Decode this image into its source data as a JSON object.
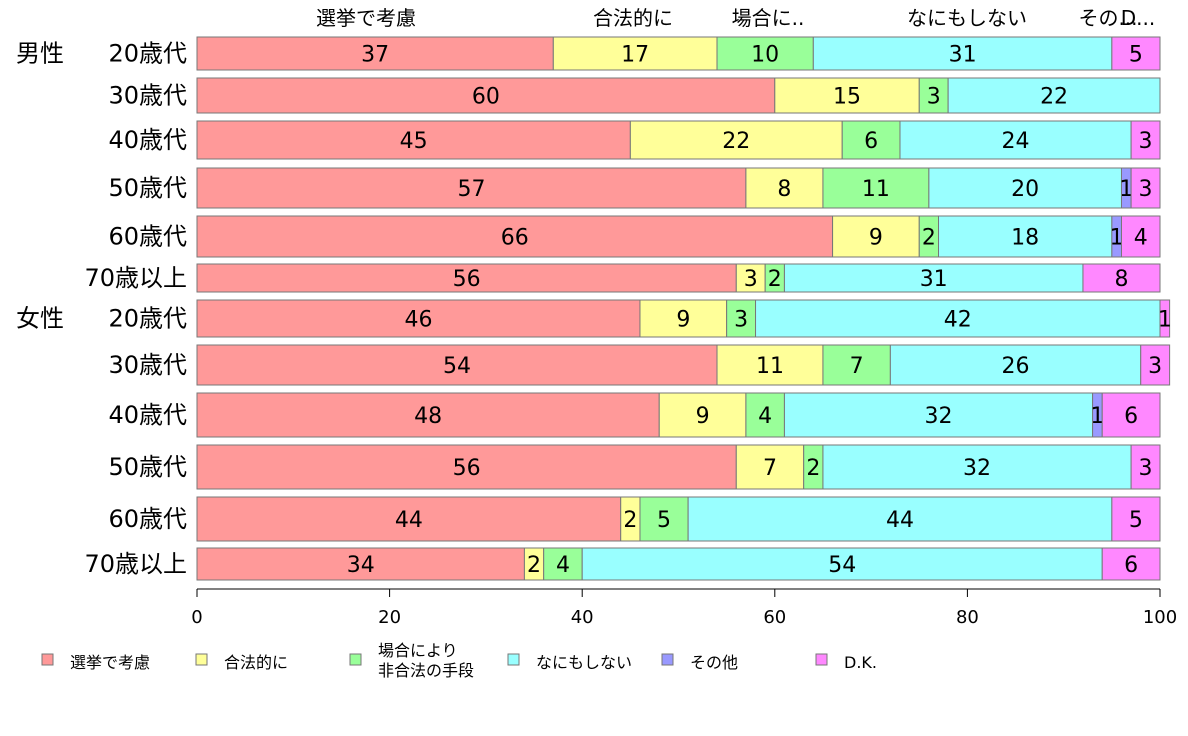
{
  "chart_data": {
    "type": "bar",
    "orientation": "horizontal",
    "stacked": true,
    "column_headers": [
      "選挙で考慮",
      "合法的に",
      "場合に..",
      "なにもしない",
      "その...",
      "D..."
    ],
    "group_labels": [
      "男性",
      "女性"
    ],
    "categories": [
      "20歳代",
      "30歳代",
      "40歳代",
      "50歳代",
      "60歳代",
      "70歳以上",
      "20歳代",
      "30歳代",
      "40歳代",
      "50歳代",
      "60歳代",
      "70歳以上"
    ],
    "series": [
      {
        "name": "選挙で考慮",
        "color": "#FF9999",
        "values": [
          37,
          60,
          45,
          57,
          66,
          56,
          46,
          54,
          48,
          56,
          44,
          34
        ]
      },
      {
        "name": "合法的に",
        "color": "#FFFF99",
        "values": [
          17,
          15,
          22,
          8,
          9,
          3,
          9,
          11,
          9,
          7,
          2,
          2
        ]
      },
      {
        "name": "場合により\n非合法の手段",
        "color": "#99FF99",
        "values": [
          10,
          3,
          6,
          11,
          2,
          2,
          3,
          7,
          4,
          2,
          5,
          4
        ]
      },
      {
        "name": "なにもしない",
        "color": "#99FFFF",
        "values": [
          31,
          22,
          24,
          20,
          18,
          31,
          42,
          26,
          32,
          32,
          44,
          54
        ]
      },
      {
        "name": "その他",
        "color": "#9999FF",
        "values": [
          0,
          0,
          0,
          1,
          1,
          0,
          0,
          0,
          1,
          0,
          0,
          0
        ]
      },
      {
        "name": "D.K.",
        "color": "#FF88FF",
        "values": [
          5,
          0,
          3,
          3,
          4,
          8,
          1,
          3,
          6,
          3,
          5,
          6
        ]
      }
    ],
    "xlim": [
      0,
      100
    ],
    "xticks": [
      0,
      20,
      40,
      60,
      80,
      100
    ],
    "legend_position": "bottom",
    "grid": false
  }
}
